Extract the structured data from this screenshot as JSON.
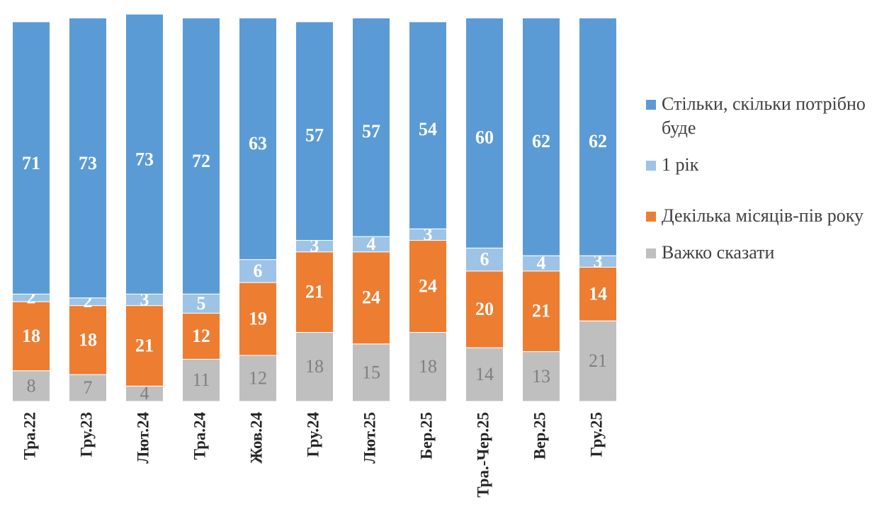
{
  "chart_data": {
    "type": "stacked_bar",
    "categories": [
      "Тра.22",
      "Гру.23",
      "Лют.24",
      "Тра.24",
      "Жов.24",
      "Гру.24",
      "Лют.25",
      "Бер.25",
      "Тра.-Чер.25",
      "Вер.25",
      "Гру.25"
    ],
    "series": [
      {
        "name": "Важко сказати",
        "color": "#bfbfbf",
        "values": [
          8,
          7,
          4,
          11,
          12,
          18,
          15,
          18,
          14,
          13,
          21
        ]
      },
      {
        "name": "Декілька місяців-пів року",
        "color": "#ed7d31",
        "values": [
          18,
          18,
          21,
          12,
          19,
          21,
          24,
          24,
          20,
          21,
          14
        ]
      },
      {
        "name": "1 рік",
        "color": "#9dc3e6",
        "values": [
          2,
          2,
          3,
          5,
          6,
          3,
          4,
          3,
          6,
          4,
          3
        ]
      },
      {
        "name": "Стільки, скільки потрібно буде",
        "color": "#5b9bd5",
        "values": [
          71,
          73,
          73,
          72,
          63,
          57,
          57,
          54,
          60,
          62,
          62
        ]
      }
    ],
    "ylim": [
      0,
      101
    ],
    "legend": "right"
  }
}
